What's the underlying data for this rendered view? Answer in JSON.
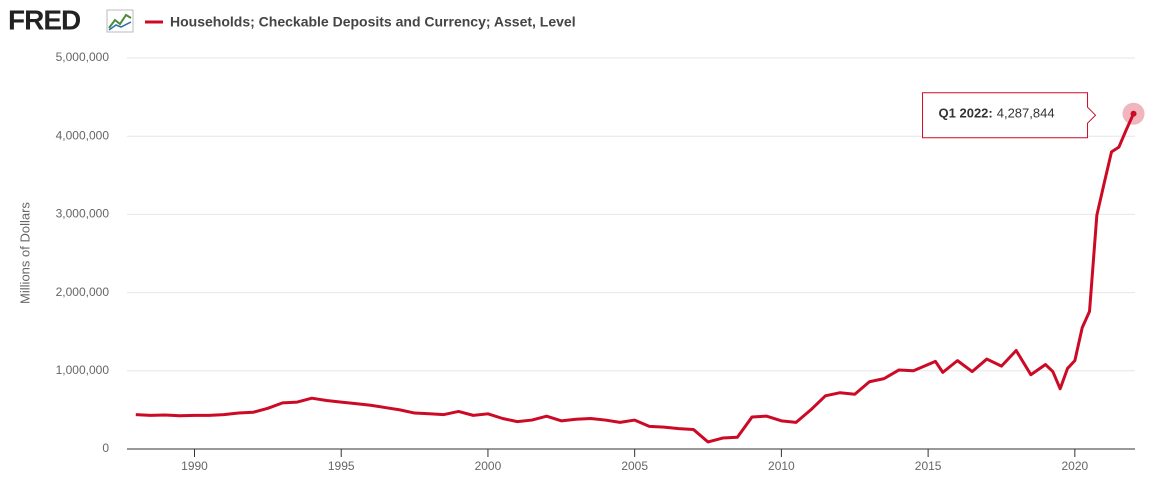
{
  "chart_data": {
    "type": "line",
    "logo": "FRED",
    "title": "Households; Checkable Deposits and Currency; Asset, Level",
    "y_label": "Millions of Dollars",
    "xlim": [
      1987.7,
      2022.05
    ],
    "xticks": [
      1990,
      1995,
      2000,
      2005,
      2010,
      2015,
      2020
    ],
    "ylim": [
      0,
      5000000
    ],
    "yticks": [
      0,
      {
        "value": 1000000,
        "label": "1,000,000"
      },
      {
        "value": 2000000,
        "label": "2,000,000"
      },
      {
        "value": 3000000,
        "label": "3,000,000"
      },
      {
        "value": 4000000,
        "label": "4,000,000"
      },
      {
        "value": 5000000,
        "label": "5,000,000"
      }
    ],
    "grid": true,
    "x": [
      1988.0,
      1988.5,
      1989.0,
      1989.5,
      1990.0,
      1990.5,
      1991.0,
      1991.5,
      1992.0,
      1992.5,
      1993.0,
      1993.5,
      1994.0,
      1994.5,
      1995.0,
      1995.5,
      1996.0,
      1996.5,
      1997.0,
      1997.5,
      1998.0,
      1998.5,
      1999.0,
      1999.5,
      2000.0,
      2000.5,
      2001.0,
      2001.5,
      2002.0,
      2002.5,
      2003.0,
      2003.5,
      2004.0,
      2004.5,
      2005.0,
      2005.5,
      2006.0,
      2006.5,
      2007.0,
      2007.5,
      2008.0,
      2008.5,
      2009.0,
      2009.5,
      2010.0,
      2010.5,
      2011.0,
      2011.5,
      2012.0,
      2012.5,
      2013.0,
      2013.5,
      2014.0,
      2014.5,
      2015.0,
      2015.25,
      2015.5,
      2016.0,
      2016.5,
      2017.0,
      2017.5,
      2018.0,
      2018.5,
      2019.0,
      2019.25,
      2019.5,
      2019.75,
      2020.0,
      2020.25,
      2020.5,
      2020.75,
      2021.0,
      2021.25,
      2021.5,
      2021.75,
      2022.0
    ],
    "series": [
      {
        "name": "Households; Checkable Deposits and Currency; Asset, Level",
        "color": "#cc0a26",
        "values": [
          440000,
          430000,
          435000,
          425000,
          430000,
          430000,
          440000,
          460000,
          470000,
          520000,
          590000,
          600000,
          650000,
          620000,
          600000,
          580000,
          560000,
          530000,
          500000,
          460000,
          450000,
          440000,
          480000,
          430000,
          450000,
          390000,
          350000,
          370000,
          420000,
          360000,
          380000,
          390000,
          370000,
          340000,
          370000,
          290000,
          280000,
          260000,
          250000,
          90000,
          140000,
          150000,
          410000,
          420000,
          360000,
          340000,
          500000,
          680000,
          720000,
          700000,
          860000,
          900000,
          1010000,
          1000000,
          1080000,
          1120000,
          980000,
          1130000,
          990000,
          1150000,
          1060000,
          1260000,
          950000,
          1080000,
          990000,
          770000,
          1030000,
          1130000,
          1550000,
          1760000,
          2990000,
          3400000,
          3800000,
          3860000,
          4080000,
          4287844
        ]
      }
    ],
    "annotation": {
      "text": "Q1 2022:",
      "value_label": "4,287,844"
    }
  }
}
